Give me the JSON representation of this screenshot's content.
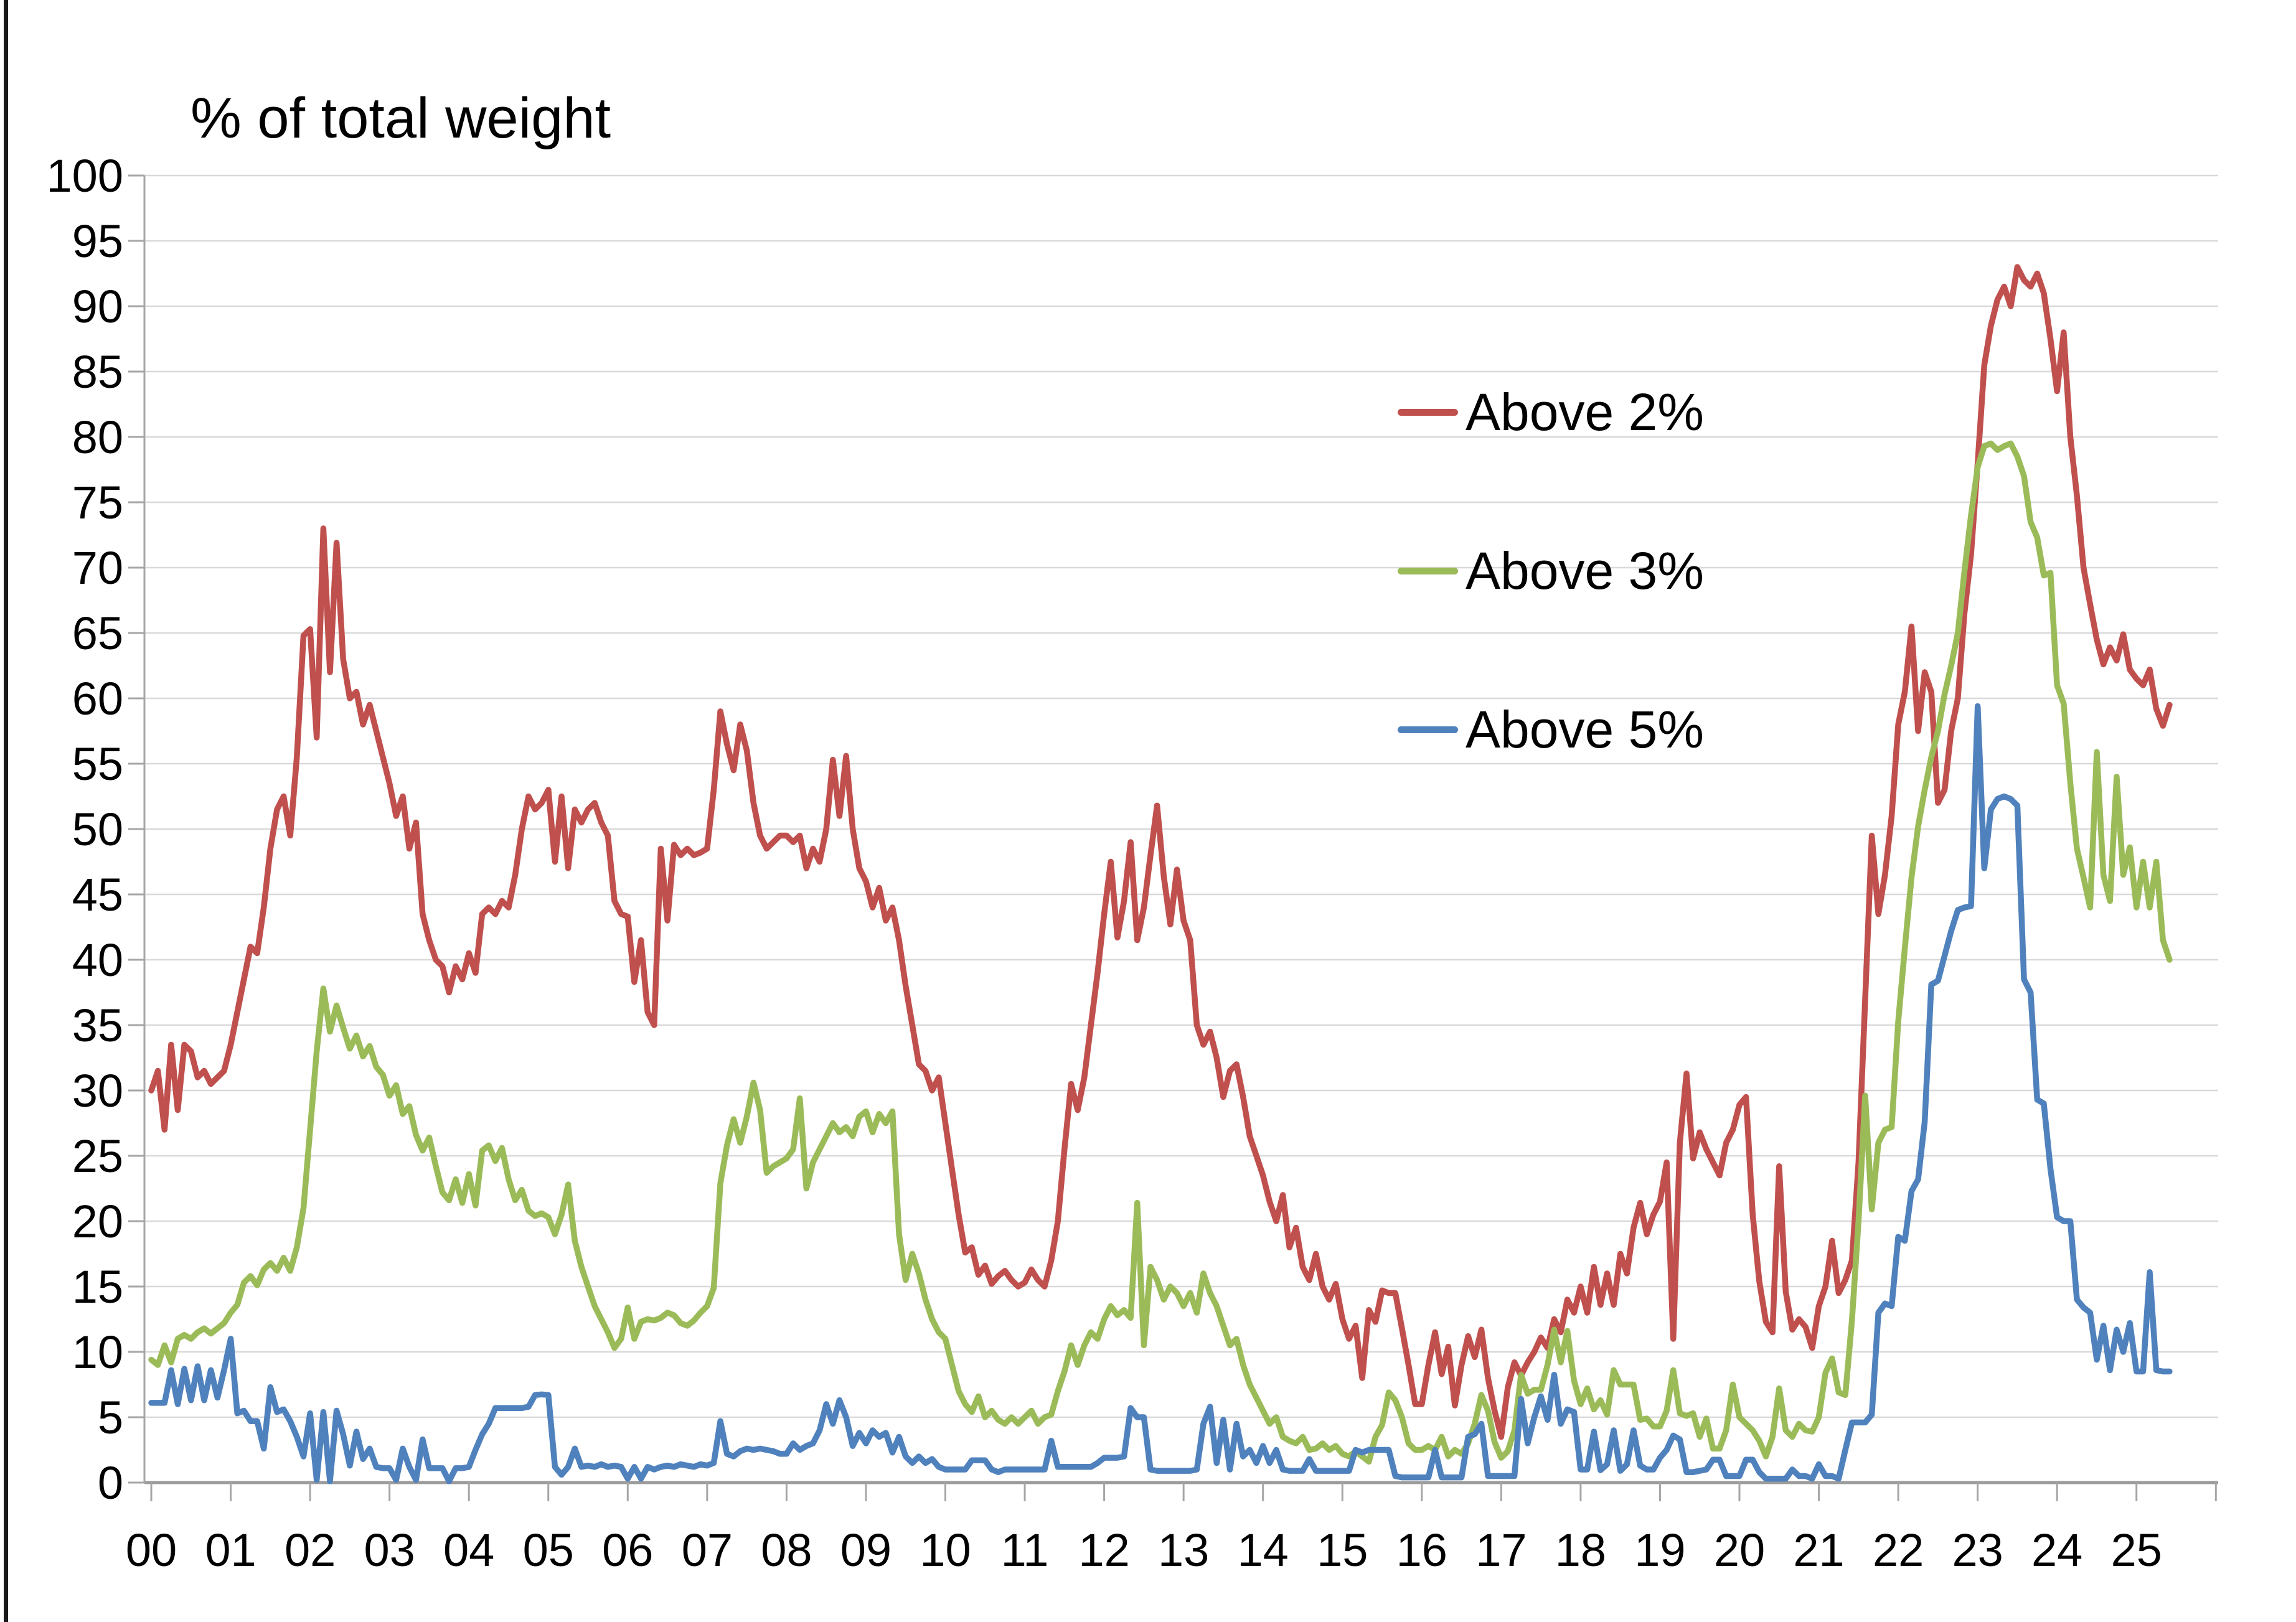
{
  "title": "% of total weight",
  "legend": [
    {
      "label": "Above 2%",
      "color": "#C0504D"
    },
    {
      "label": "Above 3%",
      "color": "#9BBB59"
    },
    {
      "label": "Above 5%",
      "color": "#4F81BD"
    }
  ],
  "chart_data": {
    "type": "line",
    "title": "% of total weight",
    "x_start_year": 2000,
    "points_per_year": 12,
    "x_end": "2025-06",
    "ylim": [
      0,
      100
    ],
    "y_tick_step": 5,
    "grid": "horizontal",
    "legend_position": "inside-upper-right",
    "grid_color": "#D9D9D9",
    "axis_color": "#A6A6A6",
    "axis_zero_line_color": "#9B9B9B",
    "x_tick_labels": [
      "00",
      "01",
      "02",
      "03",
      "04",
      "05",
      "06",
      "07",
      "08",
      "09",
      "10",
      "11",
      "12",
      "13",
      "14",
      "15",
      "16",
      "17",
      "18",
      "19",
      "20",
      "21",
      "22",
      "23",
      "24",
      "25"
    ],
    "y_tick_labels": [
      "0",
      "5",
      "10",
      "15",
      "20",
      "25",
      "30",
      "35",
      "40",
      "45",
      "50",
      "55",
      "60",
      "65",
      "70",
      "75",
      "80",
      "85",
      "90",
      "95",
      "100"
    ],
    "series": [
      {
        "name": "Above 2%",
        "color": "#C0504D",
        "values": [
          30,
          31.5,
          27,
          33.5,
          28.5,
          33.5,
          33,
          31,
          31.5,
          30.5,
          31,
          31.5,
          33.5,
          36,
          38.5,
          41,
          40.5,
          44,
          48.5,
          51.5,
          52.5,
          49.5,
          55.5,
          64.8,
          65.3,
          57,
          73,
          62,
          71.9,
          63,
          60,
          60.5,
          58,
          59.5,
          57.5,
          55.5,
          53.5,
          51,
          52.5,
          48.5,
          50.5,
          43.5,
          41.5,
          40,
          39.5,
          37.5,
          39.5,
          38.5,
          40.5,
          39,
          43.5,
          44,
          43.5,
          44.5,
          44,
          46.5,
          50,
          52.5,
          51.5,
          52,
          53,
          47.5,
          52.5,
          47,
          51.5,
          50.5,
          51.5,
          52,
          50.5,
          49.5,
          44.5,
          43.5,
          43.3,
          38.3,
          41.5,
          36,
          35,
          48.5,
          43,
          48.8,
          48,
          48.5,
          48,
          48.2,
          48.5,
          53,
          59,
          56.5,
          54.5,
          58,
          56,
          52,
          49.5,
          48.5,
          49,
          49.5,
          49.5,
          49,
          49.5,
          47,
          48.5,
          47.5,
          50,
          55.3,
          51,
          55.6,
          50,
          47,
          46,
          44,
          45.5,
          43,
          44,
          41.5,
          38,
          35,
          32,
          31.5,
          30,
          31,
          27.5,
          24,
          20.5,
          17.6,
          18,
          15.9,
          16.6,
          15.2,
          15.8,
          16.2,
          15.5,
          15,
          15.3,
          16.3,
          15.5,
          15,
          17,
          20,
          25.5,
          30.5,
          28.5,
          31,
          35,
          39,
          43.5,
          47.5,
          41.7,
          44.5,
          49,
          41.5,
          44,
          48,
          51.8,
          46.4,
          42.7,
          46.9,
          43,
          41.5,
          35,
          33.5,
          34.5,
          32.5,
          29.5,
          31.5,
          32,
          29.5,
          26.5,
          25,
          23.5,
          21.5,
          20,
          22,
          18,
          19.5,
          16.5,
          15.5,
          17.5,
          15,
          14,
          15.2,
          12.5,
          11,
          12,
          8,
          13.2,
          12.3,
          14.7,
          14.5,
          14.5,
          11.8,
          9,
          6,
          6,
          9,
          11.5,
          8.3,
          10.4,
          5.9,
          9,
          11.2,
          9.6,
          11.7,
          8,
          5.5,
          3.5,
          7.3,
          9.2,
          8.2,
          9.2,
          10,
          11.1,
          10.3,
          12.5,
          11.5,
          14,
          13,
          15,
          13,
          16.5,
          13.6,
          16,
          13.6,
          17.5,
          16,
          19.5,
          21.4,
          19,
          20.5,
          21.5,
          24.5,
          11,
          26,
          31.3,
          24.8,
          26.8,
          25.5,
          24.5,
          23.5,
          26,
          27,
          28.9,
          29.5,
          20.5,
          15.4,
          12.3,
          11.5,
          24.2,
          14.6,
          11.7,
          12.5,
          11.9,
          10.3,
          13.5,
          15,
          18.5,
          14.5,
          15.5,
          17,
          24.5,
          37,
          49.5,
          43.5,
          46.5,
          51,
          58,
          60.5,
          65.5,
          57.5,
          62,
          60.5,
          52,
          53,
          57.5,
          60,
          66.5,
          71,
          78,
          85.5,
          88.5,
          90.5,
          91.5,
          90,
          93,
          92,
          91.5,
          92.5,
          91,
          87.5,
          83.5,
          88,
          80,
          75.5,
          70,
          67.2,
          64.5,
          62.6,
          63.9,
          62.9,
          64.9,
          62.2,
          61.5,
          61,
          62.2,
          59.2,
          57.9,
          59.5
        ]
      },
      {
        "name": "Above 3%",
        "color": "#9BBB59",
        "values": [
          9.4,
          9,
          10.5,
          9.2,
          11,
          11.3,
          11,
          11.5,
          11.8,
          11.4,
          11.8,
          12.2,
          13,
          13.6,
          15.3,
          15.8,
          15.1,
          16.3,
          16.8,
          16.2,
          17.2,
          16.2,
          18,
          21,
          27,
          33,
          37.8,
          34.5,
          36.5,
          34.8,
          33.2,
          34.2,
          32.6,
          33.4,
          31.8,
          31.2,
          29.6,
          30.4,
          28.2,
          28.8,
          26.6,
          25.4,
          26.4,
          24.2,
          22.2,
          21.6,
          23.2,
          21.4,
          23.6,
          21.2,
          25.4,
          25.8,
          24.6,
          25.6,
          23.2,
          21.6,
          22.4,
          20.8,
          20.4,
          20.6,
          20.3,
          19,
          20.5,
          22.8,
          18.5,
          16.5,
          15,
          13.5,
          12.5,
          11.5,
          10.3,
          11,
          13.4,
          11,
          12.3,
          12.5,
          12.4,
          12.6,
          13,
          12.8,
          12.2,
          12,
          12.4,
          13,
          13.5,
          14.9,
          22.9,
          25.8,
          27.8,
          26,
          28,
          30.6,
          28.5,
          23.7,
          24.2,
          24.5,
          24.8,
          25.5,
          29.4,
          22.5,
          24.5,
          25.5,
          26.5,
          27.5,
          26.8,
          27.2,
          26.5,
          28,
          28.4,
          26.8,
          28.2,
          27.5,
          28.4,
          19,
          15.5,
          17.5,
          16,
          14,
          12.5,
          11.5,
          11,
          9,
          7,
          6,
          5.4,
          6.6,
          5,
          5.5,
          4.8,
          4.5,
          5,
          4.5,
          5,
          5.5,
          4.5,
          5,
          5.2,
          7,
          8.5,
          10.5,
          9,
          10.5,
          11.5,
          11,
          12.5,
          13.5,
          12.8,
          13.2,
          12.6,
          21.4,
          10.5,
          16.5,
          15.5,
          14,
          15,
          14.5,
          13.5,
          14.5,
          13,
          16,
          14.5,
          13.5,
          12,
          10.5,
          11,
          9,
          7.5,
          6.5,
          5.5,
          4.5,
          5,
          3.5,
          3.2,
          3,
          3.5,
          2.5,
          2.6,
          3,
          2.5,
          2.8,
          2.2,
          2,
          2.4,
          2,
          1.6,
          3.5,
          4.4,
          6.9,
          6.3,
          5,
          3,
          2.5,
          2.5,
          2.8,
          2.5,
          3.5,
          2,
          2.5,
          2.2,
          3,
          4.5,
          6.7,
          5.5,
          3.1,
          1.9,
          2.4,
          4,
          8.25,
          6.8,
          7.1,
          7.1,
          9,
          11.7,
          9.2,
          11.6,
          7.8,
          6,
          7.2,
          5.6,
          6.3,
          5.2,
          8.6,
          7.5,
          7.5,
          7.5,
          4.8,
          4.9,
          4.3,
          4.3,
          5.5,
          8.6,
          5.3,
          5.1,
          5.3,
          3.5,
          4.9,
          2.6,
          2.6,
          4,
          7.5,
          5,
          4.5,
          4,
          3.2,
          2,
          3.5,
          7.2,
          4,
          3.5,
          4.5,
          4,
          3.9,
          5,
          8.4,
          9.5,
          6.9,
          6.7,
          12.4,
          20,
          29.6,
          20.9,
          26,
          27,
          27.2,
          35.3,
          40.9,
          46.3,
          50.2,
          53,
          55.5,
          57.5,
          60.3,
          62.5,
          65,
          69.7,
          74,
          77.7,
          79.3,
          79.5,
          79,
          79.3,
          79.5,
          78.5,
          77,
          73.5,
          72.3,
          69.4,
          69.6,
          61,
          59.6,
          53.5,
          48.5,
          46.3,
          44,
          55.9,
          46.5,
          44.5,
          54,
          46.5,
          48.6,
          44,
          47.5,
          44,
          47.5,
          41.5,
          40
        ]
      },
      {
        "name": "Above 5%",
        "color": "#4F81BD",
        "values": [
          6.1,
          6.1,
          6.1,
          8.6,
          6,
          8.7,
          6.3,
          8.9,
          6.3,
          8.6,
          6.5,
          8.6,
          11,
          5.3,
          5.5,
          4.7,
          4.7,
          2.6,
          7.3,
          5.4,
          5.6,
          4.7,
          3.5,
          2,
          5.3,
          0.2,
          5.4,
          0.1,
          5.5,
          3.7,
          1.3,
          3.9,
          1.8,
          2.6,
          1.2,
          1.1,
          1.1,
          0.2,
          2.6,
          1.2,
          0.2,
          3.3,
          1.1,
          1.1,
          1.1,
          0.1,
          1.1,
          1.1,
          1.2,
          2.5,
          3.7,
          4.5,
          5.7,
          5.7,
          5.7,
          5.7,
          5.7,
          5.8,
          6.7,
          6.75,
          6.7,
          1.2,
          0.6,
          1.2,
          2.6,
          1.2,
          1.3,
          1.2,
          1.4,
          1.2,
          1.3,
          1.2,
          0.3,
          1.2,
          0.3,
          1.2,
          1,
          1.2,
          1.3,
          1.2,
          1.4,
          1.3,
          1.2,
          1.4,
          1.3,
          1.5,
          4.7,
          2.2,
          2,
          2.4,
          2.6,
          2.5,
          2.6,
          2.5,
          2.4,
          2.2,
          2.2,
          3,
          2.5,
          2.8,
          3,
          4,
          6,
          4.5,
          6.3,
          5,
          2.8,
          3.8,
          3,
          4,
          3.5,
          3.8,
          2.3,
          3.5,
          2,
          1.5,
          2,
          1.5,
          1.8,
          1.2,
          1,
          1,
          1,
          1,
          1.7,
          1.7,
          1.7,
          1,
          0.8,
          1,
          1,
          1,
          1,
          1,
          1,
          1,
          3.2,
          1.2,
          1.2,
          1.2,
          1.2,
          1.2,
          1.2,
          1.5,
          1.9,
          1.9,
          1.9,
          2,
          5.7,
          5,
          5,
          1,
          0.9,
          0.9,
          0.9,
          0.9,
          0.9,
          0.9,
          1,
          4.5,
          5.8,
          1.5,
          4.8,
          1,
          4.5,
          2,
          2.5,
          1.5,
          2.8,
          1.5,
          2.5,
          1,
          0.9,
          0.9,
          0.9,
          1.8,
          0.9,
          0.9,
          0.9,
          0.9,
          0.9,
          0.9,
          2.5,
          2.3,
          2.5,
          2.5,
          2.5,
          2.5,
          0.5,
          0.4,
          0.4,
          0.4,
          0.4,
          0.4,
          2.5,
          0.4,
          0.4,
          0.4,
          0.4,
          3.5,
          3.7,
          4.5,
          0.5,
          0.5,
          0.5,
          0.5,
          0.5,
          6.4,
          3,
          5,
          6.6,
          4.8,
          8.25,
          4.5,
          5.6,
          5.4,
          1,
          1,
          3.9,
          0.95,
          1.4,
          4,
          0.9,
          1.4,
          4,
          1.3,
          1,
          1,
          1.9,
          2.5,
          3.6,
          3.3,
          0.8,
          0.8,
          0.9,
          1,
          1.75,
          1.75,
          0.5,
          0.5,
          0.5,
          1.75,
          1.75,
          0.8,
          0.3,
          0.3,
          0.3,
          0.3,
          1,
          0.5,
          0.5,
          0.3,
          1.4,
          0.5,
          0.5,
          0.3,
          2.5,
          4.6,
          4.6,
          4.6,
          5.2,
          13,
          13.7,
          13.5,
          18.8,
          18.5,
          22.3,
          23.2,
          27.6,
          38.1,
          38.4,
          40.3,
          42.2,
          43.8,
          44,
          44.1,
          59.4,
          47,
          51.5,
          52.3,
          52.5,
          52.3,
          51.8,
          38.5,
          37.5,
          29.3,
          29,
          24,
          20.3,
          20,
          20,
          14,
          13.4,
          13,
          9.4,
          12,
          8.6,
          11.7,
          10,
          12.2,
          8.5,
          8.5,
          16.1,
          8.6,
          8.5,
          8.5
        ]
      }
    ]
  }
}
